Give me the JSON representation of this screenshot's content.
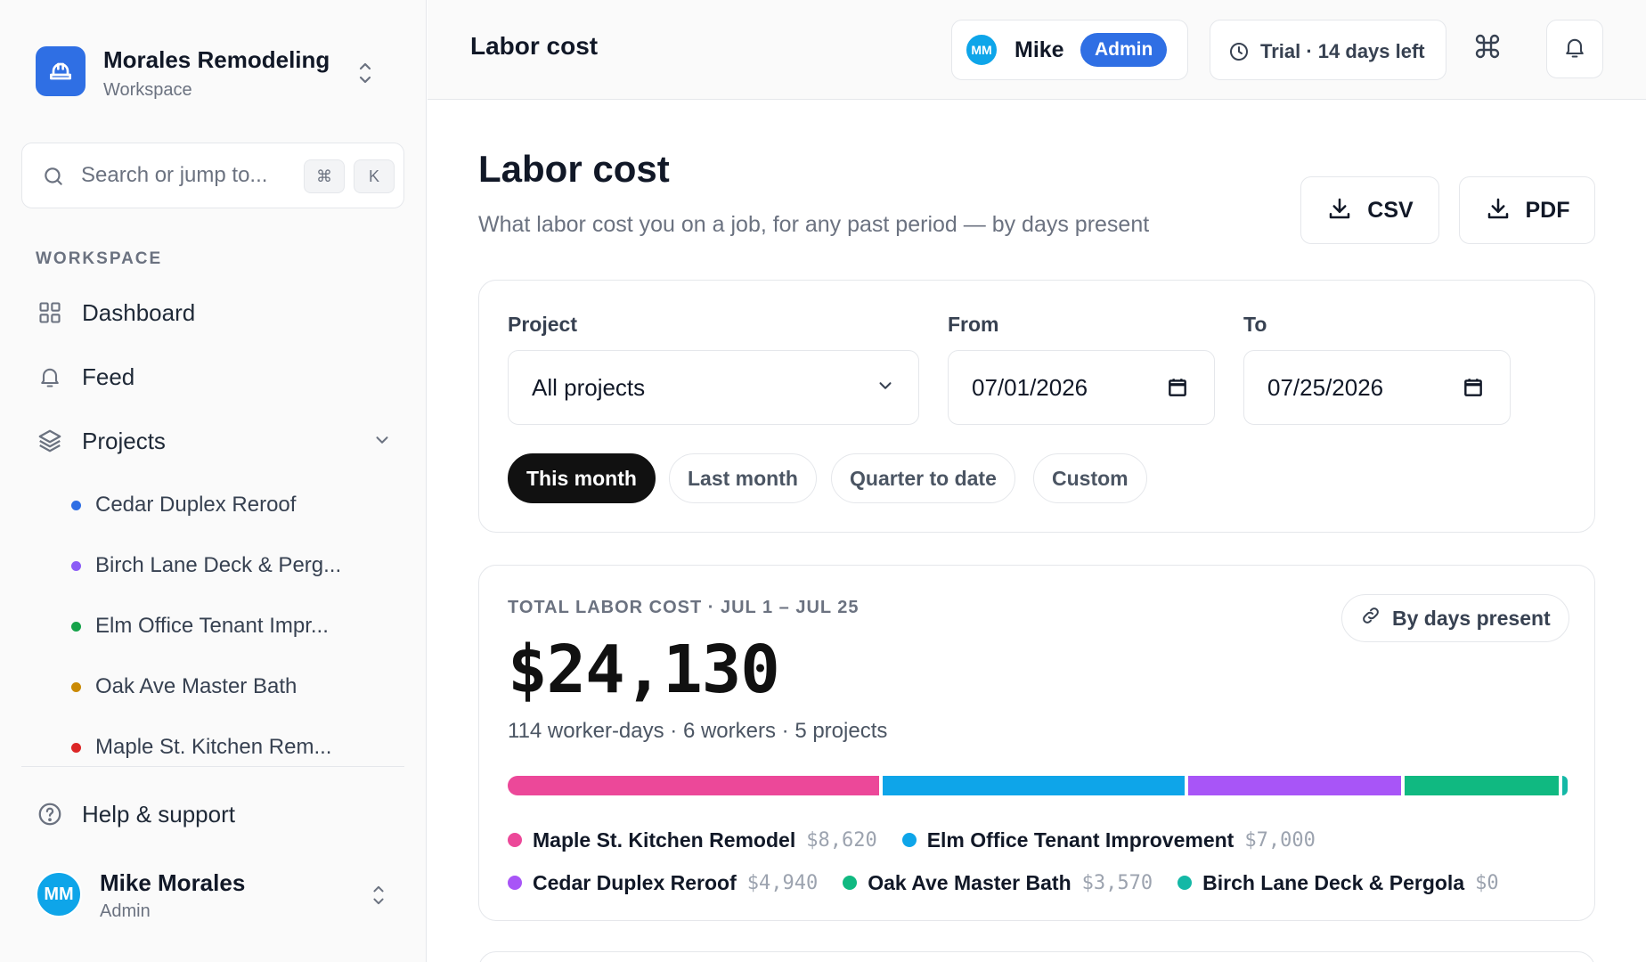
{
  "workspace": {
    "name": "Morales Remodeling",
    "subtitle": "Workspace",
    "logo_icon": "hard-hat-icon",
    "brand_color": "#2f6fe4"
  },
  "search": {
    "placeholder": "Search or jump to...",
    "shortcut_keys": [
      "⌘",
      "K"
    ]
  },
  "sidebar": {
    "section_label": "WORKSPACE",
    "nav": [
      {
        "label": "Dashboard",
        "icon": "grid-icon"
      },
      {
        "label": "Feed",
        "icon": "bell-icon"
      },
      {
        "label": "Projects",
        "icon": "layers-icon",
        "expanded": true
      }
    ],
    "projects": [
      {
        "label": "Cedar Duplex Reroof",
        "color": "#2f6fe4"
      },
      {
        "label": "Birch Lane Deck & Perg...",
        "color": "#8b5cf6"
      },
      {
        "label": "Elm Office Tenant Impr...",
        "color": "#16a34a"
      },
      {
        "label": "Oak Ave Master Bath",
        "color": "#ca8a04"
      },
      {
        "label": "Maple St. Kitchen Rem...",
        "color": "#dc2626"
      }
    ],
    "help_label": "Help & support",
    "user": {
      "initials": "MM",
      "name": "Mike Morales",
      "role": "Admin"
    }
  },
  "topbar": {
    "title": "Labor cost",
    "user": {
      "initials": "MM",
      "name": "Mike",
      "badge": "Admin"
    },
    "trial_label": "Trial · 14 days left",
    "command_icon": "command-icon",
    "notifications_icon": "bell-icon"
  },
  "page": {
    "title": "Labor cost",
    "subtitle": "What labor cost you on a job, for any past period — by days present",
    "export": {
      "csv_label": "CSV",
      "pdf_label": "PDF"
    }
  },
  "filters": {
    "project_label": "Project",
    "project_value": "All projects",
    "from_label": "From",
    "from_value": "07/01/2026",
    "to_label": "To",
    "to_value": "07/25/2026",
    "presets": [
      {
        "label": "This month",
        "active": true
      },
      {
        "label": "Last month",
        "active": false
      },
      {
        "label": "Quarter to date",
        "active": false
      },
      {
        "label": "Custom",
        "active": false
      }
    ]
  },
  "summary": {
    "kicker": "TOTAL LABOR COST · JUL 1 – JUL 25",
    "total": "$24,130",
    "stats": "114 worker-days · 6 workers · 5 projects",
    "method_label": "By days present",
    "breakdown": [
      {
        "name": "Maple St. Kitchen Remodel",
        "amount": "$8,620",
        "value": 8620,
        "color": "#ec4899"
      },
      {
        "name": "Elm Office Tenant Improvement",
        "amount": "$7,000",
        "value": 7000,
        "color": "#0ea5e9"
      },
      {
        "name": "Cedar Duplex Reroof",
        "amount": "$4,940",
        "value": 4940,
        "color": "#a855f7"
      },
      {
        "name": "Oak Ave Master Bath",
        "amount": "$3,570",
        "value": 3570,
        "color": "#10b981"
      },
      {
        "name": "Birch Lane Deck & Pergola",
        "amount": "$0",
        "value": 0,
        "color": "#14b8a6"
      }
    ]
  }
}
